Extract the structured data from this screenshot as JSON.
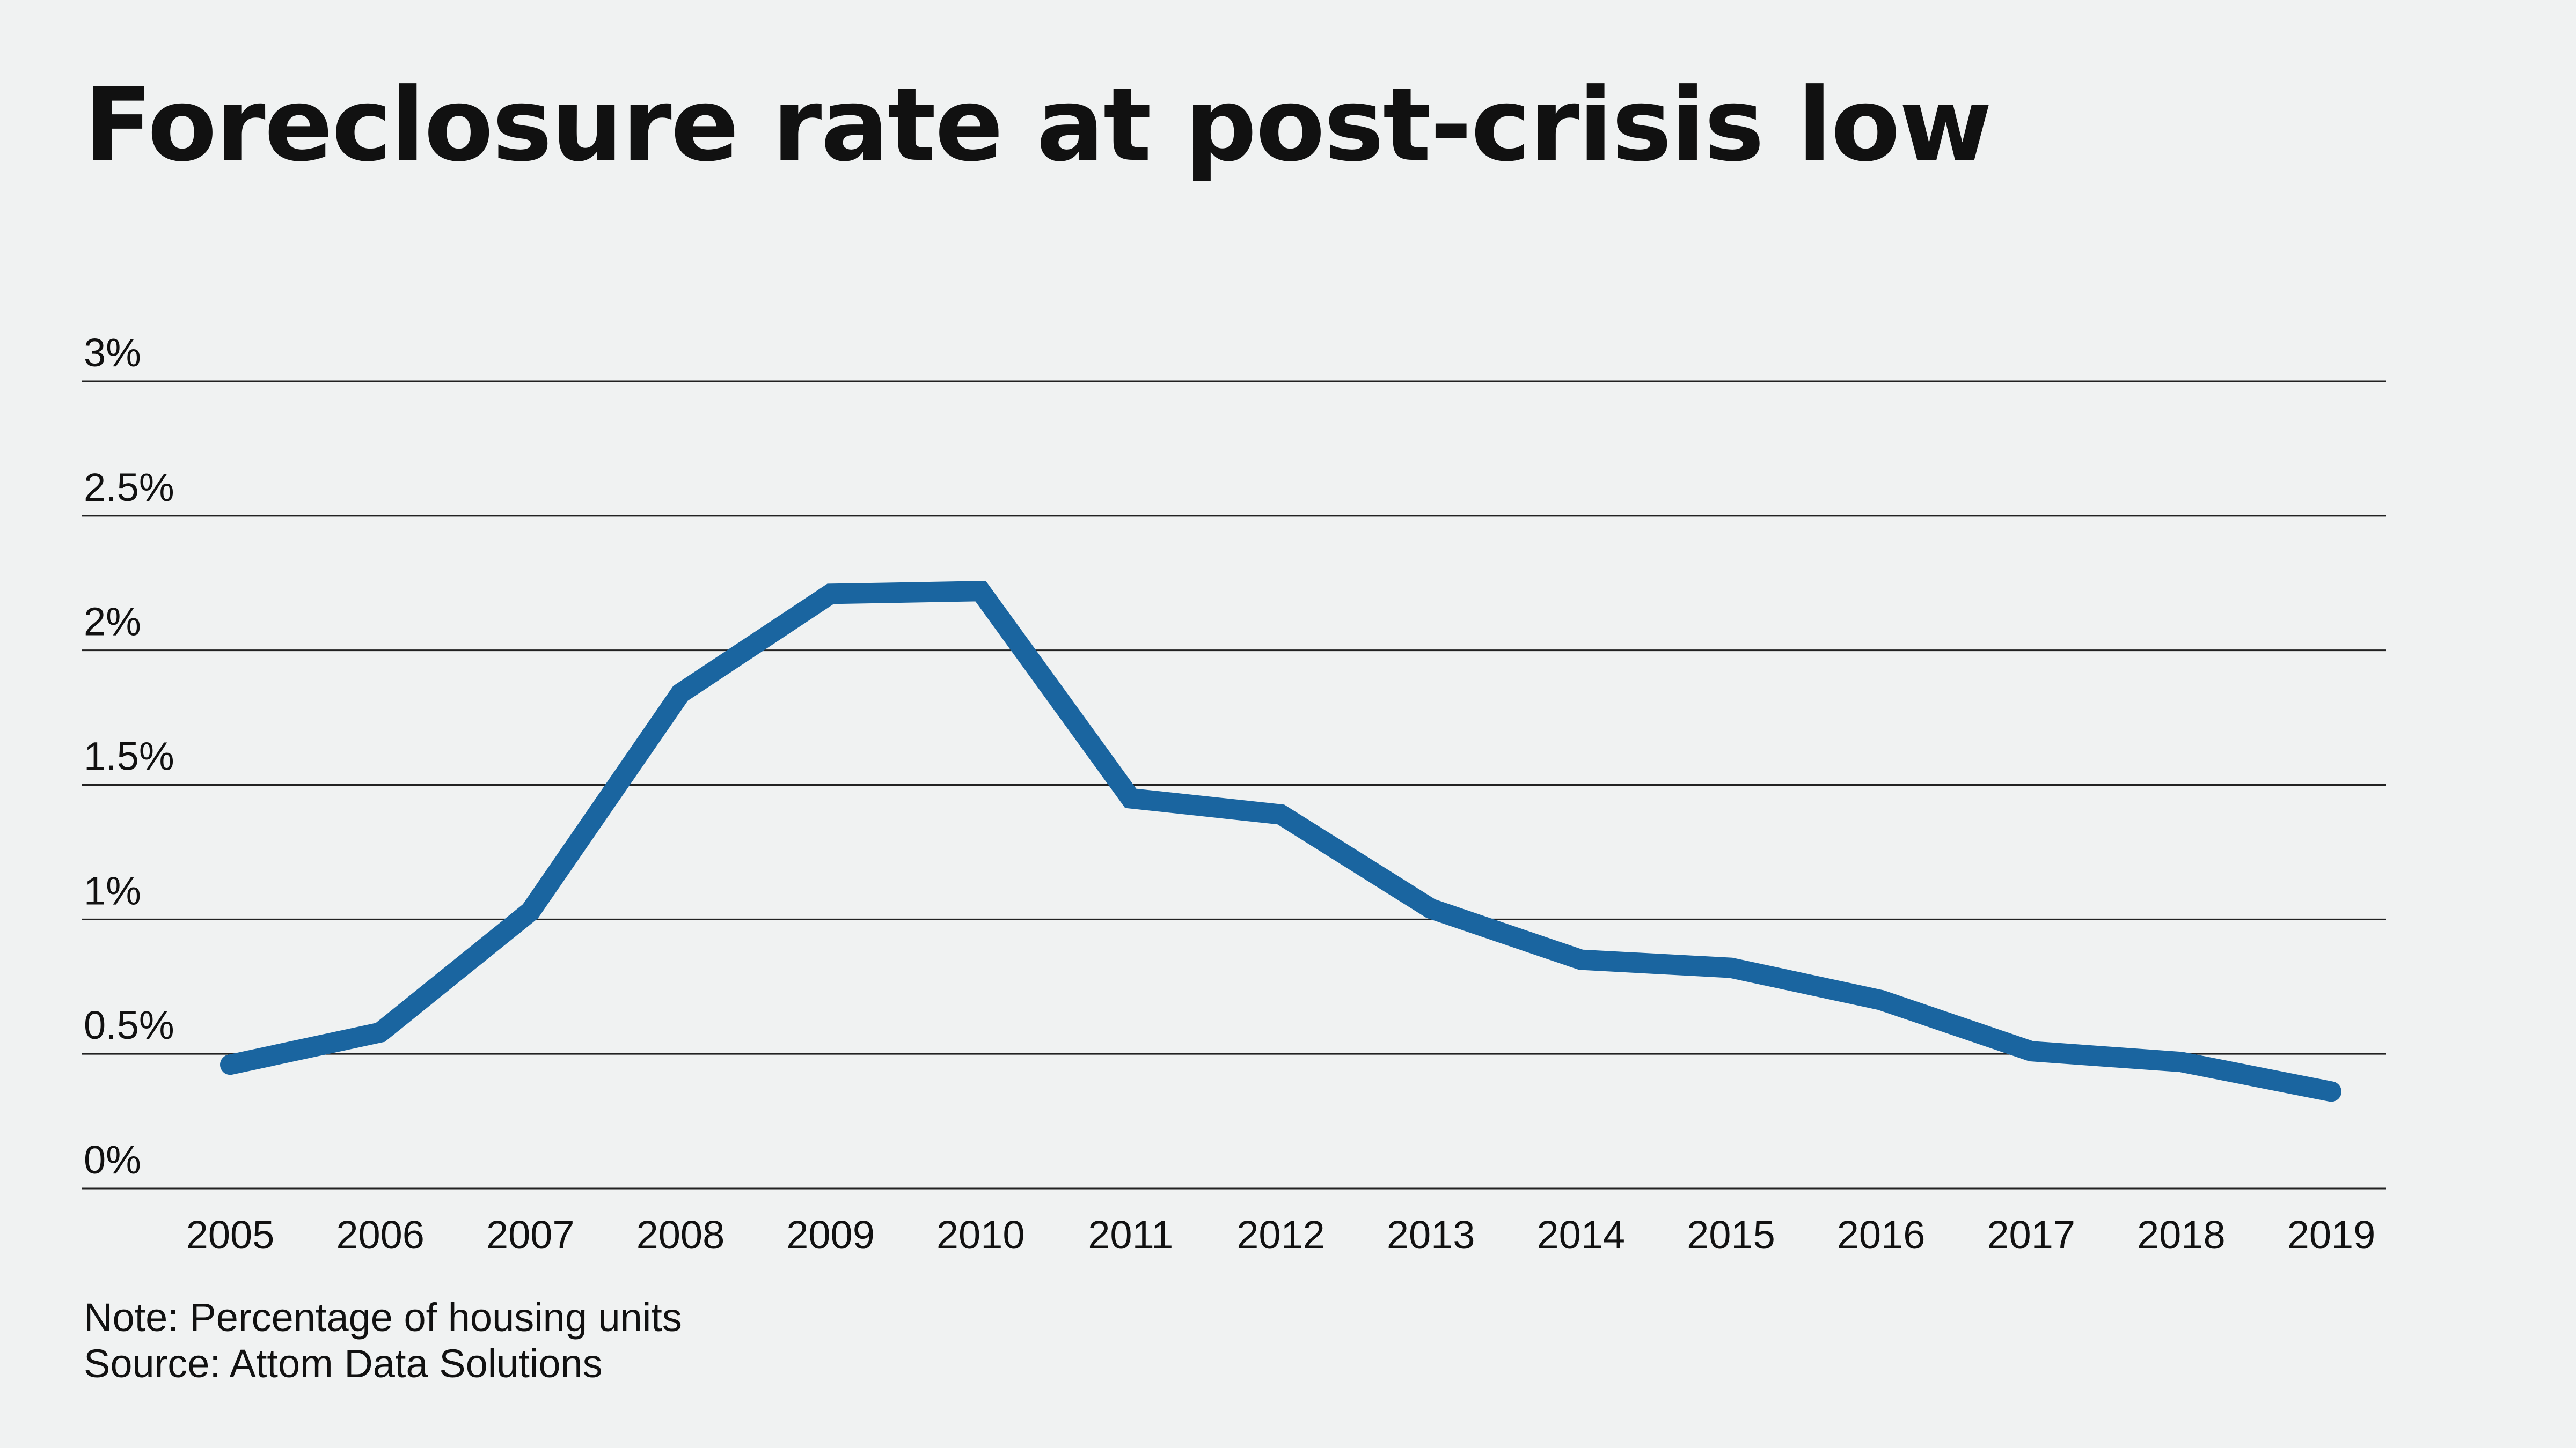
{
  "chart_data": {
    "type": "line",
    "title": "Foreclosure rate at post-crisis low",
    "xlabel": "",
    "ylabel": "",
    "categories": [
      "2005",
      "2006",
      "2007",
      "2008",
      "2009",
      "2010",
      "2011",
      "2012",
      "2013",
      "2014",
      "2015",
      "2016",
      "2017",
      "2018",
      "2019"
    ],
    "series": [
      {
        "name": "",
        "color": "#1a65a0",
        "values": [
          0.46,
          0.58,
          1.03,
          1.84,
          2.21,
          2.22,
          1.45,
          1.39,
          1.04,
          0.85,
          0.82,
          0.7,
          0.51,
          0.47,
          0.36
        ]
      }
    ],
    "ylim": [
      0,
      3
    ],
    "yticks": [
      0,
      0.5,
      1,
      1.5,
      2,
      2.5,
      3
    ],
    "ytick_labels": [
      "0%",
      "0.5%",
      "1%",
      "1.5%",
      "2%",
      "2.5%",
      "3%"
    ],
    "grid": true,
    "legend": "none",
    "note": "Note: Percentage of housing units",
    "source": "Source: Attom Data Solutions"
  }
}
